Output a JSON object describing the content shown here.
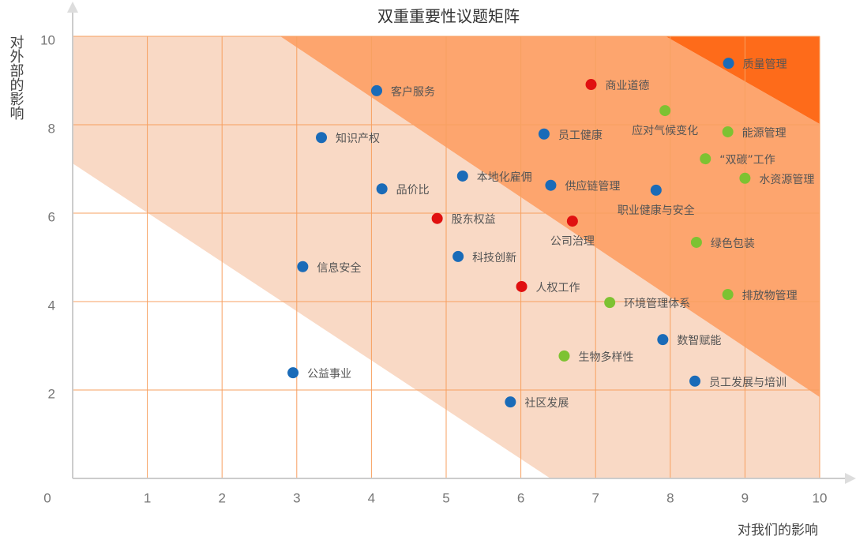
{
  "chart_data": {
    "type": "scatter",
    "title": "双重重要性议题矩阵",
    "x_label": "对我们的影响",
    "y_label": "对外部的影响",
    "xlim": [
      0,
      10
    ],
    "ylim": [
      0,
      10
    ],
    "xticks": [
      0,
      1,
      2,
      3,
      4,
      5,
      6,
      7,
      8,
      9,
      10
    ],
    "yticks": [
      2,
      4,
      6,
      8,
      10
    ],
    "grid": true,
    "points": [
      {
        "name": "质量管理",
        "x": 8.78,
        "y": 9.39,
        "color": "#1a6bb8"
      },
      {
        "name": "商业道德",
        "x": 6.94,
        "y": 8.91,
        "color": "#e01010"
      },
      {
        "name": "客户服务",
        "x": 4.07,
        "y": 8.77,
        "color": "#1a6bb8"
      },
      {
        "name": "应对气候变化",
        "x": 7.93,
        "y": 8.32,
        "color": "#7dc232"
      },
      {
        "name": "能源管理",
        "x": 8.77,
        "y": 7.84,
        "color": "#7dc232"
      },
      {
        "name": "员工健康",
        "x": 6.31,
        "y": 7.79,
        "color": "#1a6bb8"
      },
      {
        "name": "知识产权",
        "x": 3.33,
        "y": 7.71,
        "color": "#1a6bb8"
      },
      {
        "name": "“双碳”工作",
        "x": 8.47,
        "y": 7.23,
        "color": "#7dc232"
      },
      {
        "name": "水资源管理",
        "x": 9.0,
        "y": 6.79,
        "color": "#7dc232"
      },
      {
        "name": "本地化雇佣",
        "x": 5.22,
        "y": 6.84,
        "color": "#1a6bb8"
      },
      {
        "name": "供应链管理",
        "x": 6.4,
        "y": 6.63,
        "color": "#1a6bb8"
      },
      {
        "name": "品价比",
        "x": 4.14,
        "y": 6.55,
        "color": "#1a6bb8"
      },
      {
        "name": "职业健康与安全",
        "x": 7.81,
        "y": 6.52,
        "color": "#1a6bb8"
      },
      {
        "name": "股东权益",
        "x": 4.88,
        "y": 5.88,
        "color": "#e01010"
      },
      {
        "name": "公司治理",
        "x": 6.69,
        "y": 5.82,
        "color": "#e01010"
      },
      {
        "name": "绿色包装",
        "x": 8.35,
        "y": 5.34,
        "color": "#7dc232"
      },
      {
        "name": "信息安全",
        "x": 3.08,
        "y": 4.79,
        "color": "#1a6bb8"
      },
      {
        "name": "科技创新",
        "x": 5.16,
        "y": 5.02,
        "color": "#1a6bb8"
      },
      {
        "name": "人权工作",
        "x": 6.01,
        "y": 4.34,
        "color": "#e01010"
      },
      {
        "name": "排放物管理",
        "x": 8.77,
        "y": 4.16,
        "color": "#7dc232"
      },
      {
        "name": "环境管理体系",
        "x": 7.19,
        "y": 3.98,
        "color": "#7dc232"
      },
      {
        "name": "数智赋能",
        "x": 7.9,
        "y": 3.14,
        "color": "#1a6bb8"
      },
      {
        "name": "生物多样性",
        "x": 6.58,
        "y": 2.77,
        "color": "#7dc232"
      },
      {
        "name": "公益事业",
        "x": 2.95,
        "y": 2.39,
        "color": "#1a6bb8"
      },
      {
        "name": "员工发展与培训",
        "x": 8.33,
        "y": 2.2,
        "color": "#1a6bb8"
      },
      {
        "name": "社区发展",
        "x": 5.86,
        "y": 1.73,
        "color": "#1a6bb8"
      }
    ]
  }
}
